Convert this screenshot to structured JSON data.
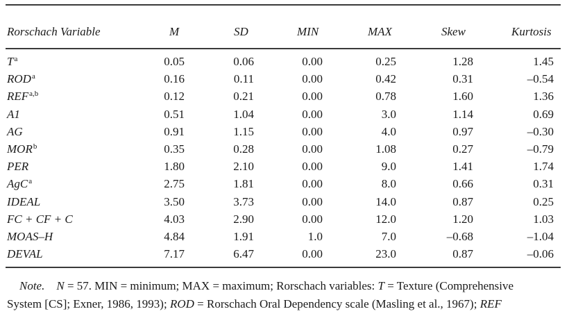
{
  "table": {
    "headers": {
      "variable": "Rorschach Variable",
      "m": "M",
      "sd": "SD",
      "min": "MIN",
      "max": "MAX",
      "skew": "Skew",
      "kurtosis": "Kurtosis"
    },
    "rows": [
      {
        "var": "T",
        "sup": "a",
        "m": "0.05",
        "sd": "0.06",
        "min": "0.00",
        "max": "0.25",
        "skew": "1.28",
        "kurt": "1.45"
      },
      {
        "var": "ROD",
        "sup": "a",
        "m": "0.16",
        "sd": "0.11",
        "min": "0.00",
        "max": "0.42",
        "skew": "0.31",
        "kurt": "–0.54"
      },
      {
        "var": "REF",
        "sup": "a,b",
        "m": "0.12",
        "sd": "0.21",
        "min": "0.00",
        "max": "0.78",
        "skew": "1.60",
        "kurt": "1.36"
      },
      {
        "var": "A1",
        "sup": "",
        "m": "0.51",
        "sd": "1.04",
        "min": "0.00",
        "max": "3.0",
        "skew": "1.14",
        "kurt": "0.69"
      },
      {
        "var": "AG",
        "sup": "",
        "m": "0.91",
        "sd": "1.15",
        "min": "0.00",
        "max": "4.0",
        "skew": "0.97",
        "kurt": "–0.30"
      },
      {
        "var": "MOR",
        "sup": "b",
        "m": "0.35",
        "sd": "0.28",
        "min": "0.00",
        "max": "1.08",
        "skew": "0.27",
        "kurt": "–0.79"
      },
      {
        "var": "PER",
        "sup": "",
        "m": "1.80",
        "sd": "2.10",
        "min": "0.00",
        "max": "9.0",
        "skew": "1.41",
        "kurt": "1.74"
      },
      {
        "var": "AgC",
        "sup": "a",
        "m": "2.75",
        "sd": "1.81",
        "min": "0.00",
        "max": "8.0",
        "skew": "0.66",
        "kurt": "0.31"
      },
      {
        "var": "IDEAL",
        "sup": "",
        "m": "3.50",
        "sd": "3.73",
        "min": "0.00",
        "max": "14.0",
        "skew": "0.87",
        "kurt": "0.25"
      },
      {
        "var": "FC + CF + C",
        "sup": "",
        "m": "4.03",
        "sd": "2.90",
        "min": "0.00",
        "max": "12.0",
        "skew": "1.20",
        "kurt": "1.03"
      },
      {
        "var": "MOAS–H",
        "sup": "",
        "m": "4.84",
        "sd": "1.91",
        "min": "1.0",
        "max": "7.0",
        "skew": "–0.68",
        "kurt": "–1.04"
      },
      {
        "var": "DEVAL",
        "sup": "",
        "m": "7.17",
        "sd": "6.47",
        "min": "0.00",
        "max": "23.0",
        "skew": "0.87",
        "kurt": "–0.06"
      }
    ]
  },
  "note": {
    "label": "Note.",
    "n_var": "N",
    "line1_a": " = 57. MIN = minimum; MAX = maximum; Rorschach variables: ",
    "t_var": "T",
    "line1_b": " = Texture (Comprehensive",
    "line2_a": "System [CS]; Exner, 1986, 1993); ",
    "rod_var": "ROD",
    "line2_b": " = Rorschach Oral Dependency scale (Masling et al., 1967); ",
    "ref_var": "REF"
  }
}
